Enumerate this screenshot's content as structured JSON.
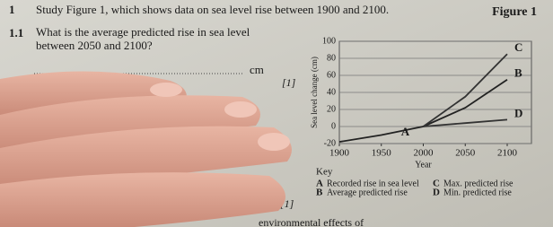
{
  "header": {
    "number": "1",
    "text": "Study Figure 1, which shows data on sea level rise between 1900 and 2100.",
    "figure_label": "Figure 1"
  },
  "question": {
    "number": "1.1",
    "text": "What is the average predicted rise in sea level between 2050 and 2100?",
    "unit": "cm",
    "marks": "[1]",
    "marks_2": "[1]",
    "footer": "environmental effects of"
  },
  "figure": {
    "type": "line",
    "ylabel": "Sea level change (cm)",
    "xlabel": "Year",
    "x": [
      1900,
      1950,
      2000,
      2050,
      2100
    ],
    "xlim": [
      1900,
      2100
    ],
    "xticks": [
      1900,
      1950,
      2000,
      2050,
      2100
    ],
    "ylim": [
      -20,
      100
    ],
    "yticks": [
      100,
      80,
      60,
      40,
      20,
      0,
      -20
    ],
    "grid": true,
    "key_title": "Key",
    "series": [
      {
        "name": "Recorded rise in sea level",
        "letter": "A",
        "color": "#222",
        "values": [
          -18,
          -10,
          0,
          null,
          null
        ]
      },
      {
        "name": "Average predicted rise",
        "letter": "B",
        "color": "#222",
        "values": [
          null,
          null,
          0,
          22,
          55
        ]
      },
      {
        "name": "Max. predicted rise",
        "letter": "C",
        "color": "#333",
        "values": [
          null,
          null,
          0,
          35,
          85
        ]
      },
      {
        "name": "Min. predicted rise",
        "letter": "D",
        "color": "#333",
        "values": [
          null,
          null,
          0,
          4,
          8
        ]
      }
    ]
  }
}
